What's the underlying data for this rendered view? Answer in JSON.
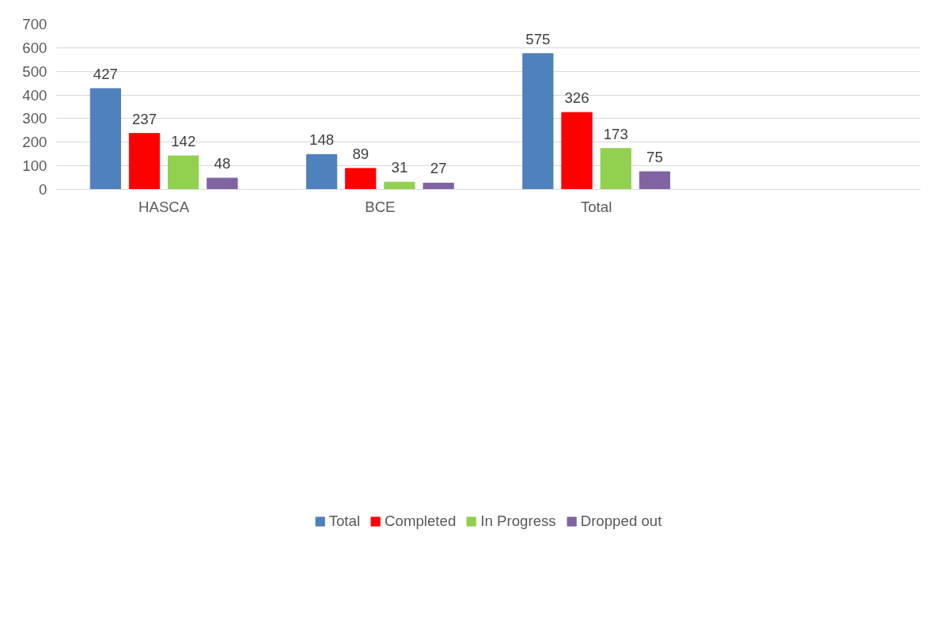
{
  "chart_data": {
    "type": "bar",
    "categories": [
      "HASCA",
      "BCE",
      "Total",
      null
    ],
    "series": [
      {
        "name": "Total",
        "color": "#4f81bd",
        "values": [
          427,
          148,
          575,
          null
        ]
      },
      {
        "name": "Completed",
        "color": "#ff0000",
        "values": [
          237,
          89,
          326,
          null
        ]
      },
      {
        "name": "In Progress",
        "color": "#92d050",
        "values": [
          142,
          31,
          173,
          null
        ]
      },
      {
        "name": "Dropped out",
        "color": "#8064a2",
        "values": [
          48,
          27,
          75,
          null
        ]
      }
    ],
    "ylim": [
      0,
      700
    ],
    "yticks": [
      0,
      100,
      200,
      300,
      400,
      500,
      600,
      700
    ],
    "grid": "y",
    "legend": "bottom",
    "data_labels": true
  }
}
